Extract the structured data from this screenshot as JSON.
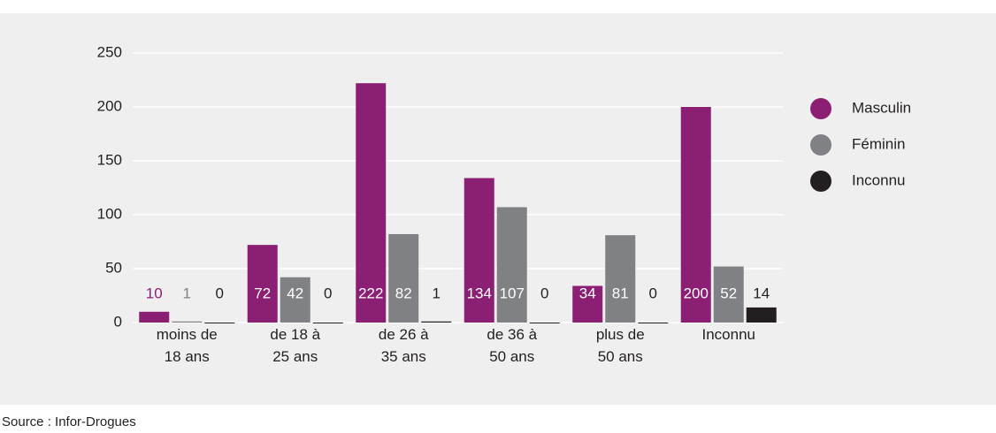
{
  "chart_data": {
    "type": "bar",
    "categories": [
      "moins de\n18 ans",
      "de 18 à\n25 ans",
      "de 26 à\n35 ans",
      "de 36 à\n50 ans",
      "plus de\n50 ans",
      "Inconnu"
    ],
    "series": [
      {
        "name": "Masculin",
        "color": "#8b1f73",
        "values": [
          10,
          72,
          222,
          134,
          34,
          200
        ]
      },
      {
        "name": "Féminin",
        "color": "#808184",
        "values": [
          1,
          42,
          82,
          107,
          81,
          52
        ]
      },
      {
        "name": "Inconnu",
        "color": "#231f20",
        "values": [
          0,
          0,
          1,
          0,
          0,
          14
        ]
      }
    ],
    "ylim": [
      0,
      250
    ],
    "yticks": [
      0,
      50,
      100,
      150,
      200,
      250
    ],
    "grid": true,
    "legend": "right",
    "source": "Source : Infor-Drogues"
  }
}
